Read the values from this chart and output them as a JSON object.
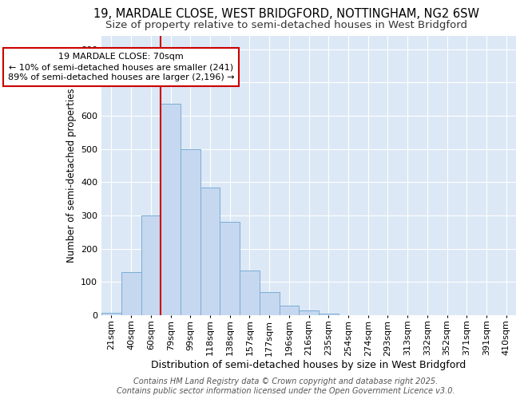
{
  "title1": "19, MARDALE CLOSE, WEST BRIDGFORD, NOTTINGHAM, NG2 6SW",
  "title2": "Size of property relative to semi-detached houses in West Bridgford",
  "xlabel": "Distribution of semi-detached houses by size in West Bridgford",
  "ylabel": "Number of semi-detached properties",
  "categories": [
    "21sqm",
    "40sqm",
    "60sqm",
    "79sqm",
    "99sqm",
    "118sqm",
    "138sqm",
    "157sqm",
    "177sqm",
    "196sqm",
    "216sqm",
    "235sqm",
    "254sqm",
    "274sqm",
    "293sqm",
    "313sqm",
    "332sqm",
    "352sqm",
    "371sqm",
    "391sqm",
    "410sqm"
  ],
  "values": [
    8,
    130,
    300,
    635,
    500,
    385,
    280,
    135,
    70,
    30,
    15,
    5,
    0,
    0,
    0,
    0,
    0,
    0,
    0,
    0,
    0
  ],
  "bar_color": "#c5d8f0",
  "bar_edge_color": "#7aadd4",
  "background_color": "#dce8f5",
  "grid_color": "#ffffff",
  "vline_color": "#cc0000",
  "vline_pos": 2.5,
  "annotation_title": "19 MARDALE CLOSE: 70sqm",
  "annotation_line1": "← 10% of semi-detached houses are smaller (241)",
  "annotation_line2": "89% of semi-detached houses are larger (2,196) →",
  "annotation_box_color": "#ffffff",
  "annotation_box_edge": "#cc0000",
  "footer1": "Contains HM Land Registry data © Crown copyright and database right 2025.",
  "footer2": "Contains public sector information licensed under the Open Government Licence v3.0.",
  "ylim": [
    0,
    840
  ],
  "yticks": [
    0,
    100,
    200,
    300,
    400,
    500,
    600,
    700,
    800
  ],
  "title1_fontsize": 10.5,
  "title2_fontsize": 9.5,
  "xlabel_fontsize": 9,
  "ylabel_fontsize": 8.5,
  "tick_fontsize": 8,
  "annotation_fontsize": 8,
  "footer_fontsize": 7
}
